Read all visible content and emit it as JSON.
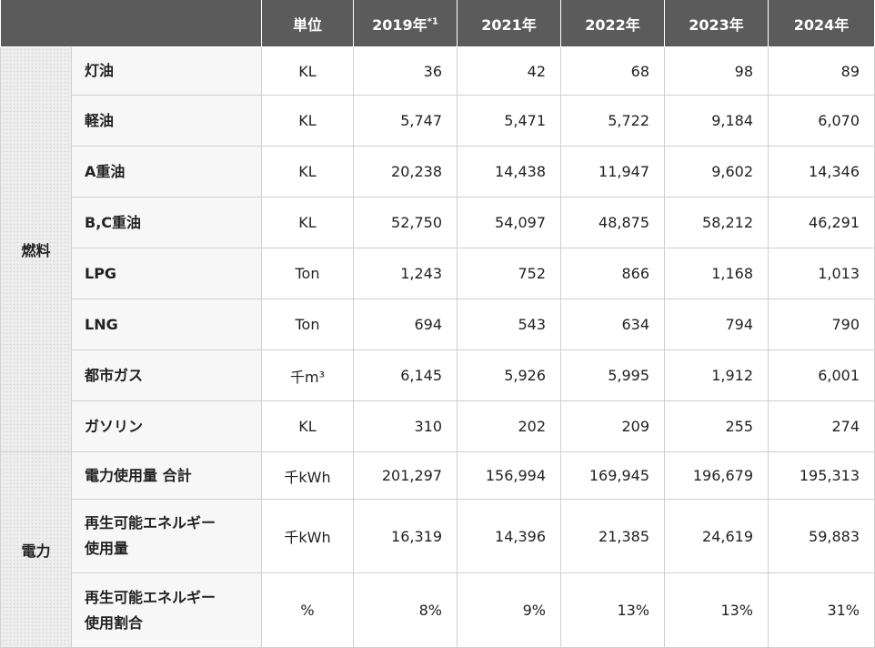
{
  "header": {
    "unit": "単位",
    "years": [
      {
        "label": "2019年",
        "note": "*1"
      },
      {
        "label": "2021年",
        "note": ""
      },
      {
        "label": "2022年",
        "note": ""
      },
      {
        "label": "2023年",
        "note": ""
      },
      {
        "label": "2024年",
        "note": ""
      }
    ]
  },
  "sections": [
    {
      "category": "燃料",
      "rows": [
        {
          "item_lines": [
            "灯油"
          ],
          "unit": "KL",
          "values": [
            "36",
            "42",
            "68",
            "98",
            "89"
          ]
        },
        {
          "item_lines": [
            "軽油"
          ],
          "unit": "KL",
          "values": [
            "5,747",
            "5,471",
            "5,722",
            "9,184",
            "6,070"
          ]
        },
        {
          "item_lines": [
            "A重油"
          ],
          "unit": "KL",
          "values": [
            "20,238",
            "14,438",
            "11,947",
            "9,602",
            "14,346"
          ]
        },
        {
          "item_lines": [
            "B,C重油"
          ],
          "unit": "KL",
          "values": [
            "52,750",
            "54,097",
            "48,875",
            "58,212",
            "46,291"
          ]
        },
        {
          "item_lines": [
            "LPG"
          ],
          "unit": "Ton",
          "values": [
            "1,243",
            "752",
            "866",
            "1,168",
            "1,013"
          ]
        },
        {
          "item_lines": [
            "LNG"
          ],
          "unit": "Ton",
          "values": [
            "694",
            "543",
            "634",
            "794",
            "790"
          ]
        },
        {
          "item_lines": [
            "都市ガス"
          ],
          "unit": "千m³",
          "values": [
            "6,145",
            "5,926",
            "5,995",
            "1,912",
            "6,001"
          ]
        },
        {
          "item_lines": [
            "ガソリン"
          ],
          "unit": "KL",
          "values": [
            "310",
            "202",
            "209",
            "255",
            "274"
          ]
        }
      ]
    },
    {
      "category": "電力",
      "rows": [
        {
          "item_lines": [
            "電力使用量 合計"
          ],
          "unit": "千kWh",
          "values": [
            "201,297",
            "156,994",
            "169,945",
            "196,679",
            "195,313"
          ]
        },
        {
          "item_lines": [
            "再生可能エネルギー",
            "使用量"
          ],
          "unit": "千kWh",
          "values": [
            "16,319",
            "14,396",
            "21,385",
            "24,619",
            "59,883"
          ]
        },
        {
          "item_lines": [
            "再生可能エネルギー",
            "使用割合"
          ],
          "unit": "%",
          "values": [
            "8%",
            "9%",
            "13%",
            "13%",
            "31%"
          ]
        }
      ]
    }
  ]
}
